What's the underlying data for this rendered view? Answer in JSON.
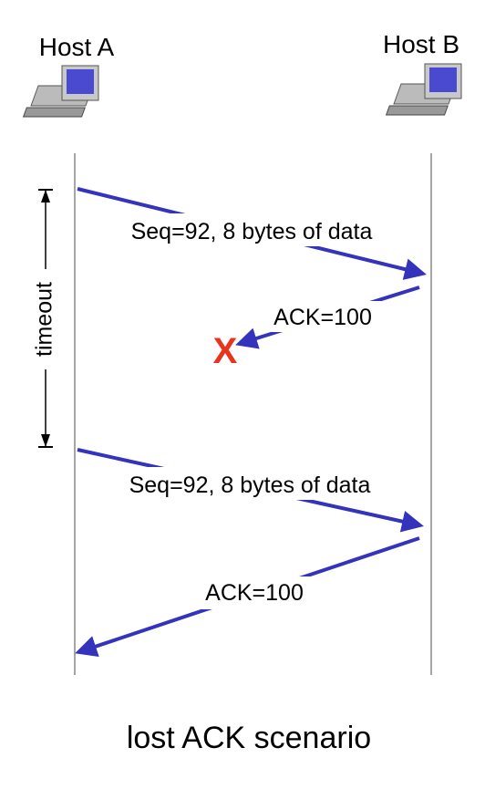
{
  "hosts": [
    {
      "label": "Host A"
    },
    {
      "label": "Host B"
    }
  ],
  "messages": [
    {
      "label": "Seq=92, 8 bytes of data"
    },
    {
      "label": "ACK=100"
    },
    {
      "label": "Seq=92, 8 bytes of data"
    },
    {
      "label": "ACK=100"
    }
  ],
  "lost_marker": "X",
  "timeout": "timeout",
  "caption": "lost ACK scenario"
}
